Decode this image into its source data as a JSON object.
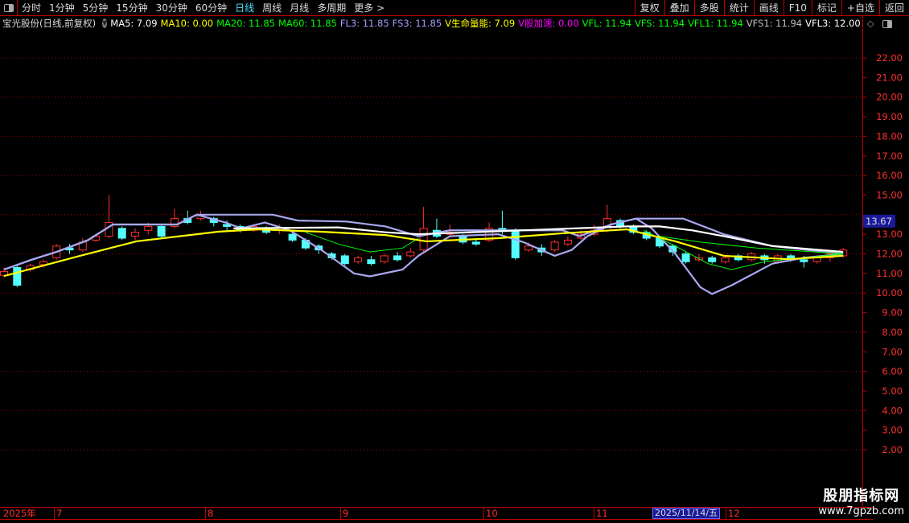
{
  "toolbar": {
    "periods": [
      "分时",
      "1分钟",
      "5分钟",
      "15分钟",
      "30分钟",
      "60分钟",
      "日线",
      "周线",
      "月线",
      "多周期",
      "更多 >"
    ],
    "active_period": "日线",
    "right_buttons": [
      "复权",
      "叠加",
      "多股",
      "统计",
      "画线",
      "F10",
      "标记",
      "+自选",
      "返回"
    ]
  },
  "legend": {
    "title": "宝光股份(日线,前复权)",
    "items": [
      {
        "label": "MA5: 7.09",
        "color": "#ffffff"
      },
      {
        "label": "MA10: 0.00",
        "color": "#ffff00"
      },
      {
        "label": "MA20: 11.85",
        "color": "#00ff00"
      },
      {
        "label": "MA60: 11.85",
        "color": "#00ff00"
      },
      {
        "label": "FL3: 11.85",
        "color": "#a0a0ff"
      },
      {
        "label": "FS3: 11.85",
        "color": "#a0a0ff"
      },
      {
        "label": "V生命量能: 7.09",
        "color": "#ffff00"
      },
      {
        "label": "V股加速: 0.00",
        "color": "#ff00ff"
      },
      {
        "label": "VFL: 11.94",
        "color": "#00ff00"
      },
      {
        "label": "VFS: 11.94",
        "color": "#00ff00"
      },
      {
        "label": "VFL1: 11.94",
        "color": "#00ff00"
      },
      {
        "label": "VFS1: 11.94",
        "color": "#c0c0c0"
      },
      {
        "label": "VFL3: 12.00",
        "color": "#ffffff"
      }
    ]
  },
  "dates": {
    "year": "2025年",
    "months": [
      "7",
      "8",
      "9",
      "10",
      "11",
      "12"
    ],
    "cursor": "2025/11/14/五"
  },
  "watermark": {
    "line1": "股朋指标网",
    "line2": "www.7gpzb.com"
  },
  "chart_data": {
    "type": "candlestick",
    "ylim": [
      1.5,
      23
    ],
    "yticks": [
      "22.00",
      "21.00",
      "20.00",
      "19.00",
      "18.00",
      "17.00",
      "16.00",
      "15.00",
      "13.00",
      "12.00",
      "11.00",
      "10.00",
      "9.00",
      "8.00",
      "7.00",
      "6.00",
      "5.00",
      "4.00",
      "3.00",
      "2.00"
    ],
    "ytick_values": [
      22,
      21,
      20,
      19,
      18,
      17,
      16,
      15,
      13,
      12,
      11,
      10,
      9,
      8,
      7,
      6,
      5,
      4,
      3,
      2
    ],
    "last_price": "13.67",
    "grid": "dotted red every 2.00",
    "up_color": "#ff3030",
    "down_color": "#54ffff",
    "candles_ochl": [
      [
        10.9,
        11.1,
        11.3,
        10.8
      ],
      [
        11.3,
        10.4,
        11.4,
        10.3
      ],
      [
        11.2,
        11.4,
        11.5,
        11.1
      ],
      [
        11.45,
        11.6,
        11.7,
        11.3
      ],
      [
        11.8,
        12.4,
        12.5,
        11.7
      ],
      [
        12.3,
        12.2,
        12.5,
        12.0
      ],
      [
        12.2,
        12.6,
        12.8,
        12.1
      ],
      [
        12.7,
        12.9,
        13.0,
        12.6
      ],
      [
        12.9,
        13.6,
        15.0,
        12.8
      ],
      [
        13.3,
        12.8,
        13.4,
        12.7
      ],
      [
        12.9,
        13.1,
        13.3,
        12.7
      ],
      [
        13.2,
        13.4,
        13.6,
        13.0
      ],
      [
        13.4,
        12.9,
        13.5,
        12.8
      ],
      [
        13.4,
        13.8,
        14.3,
        13.3
      ],
      [
        13.8,
        13.6,
        14.2,
        13.5
      ],
      [
        13.8,
        14.0,
        14.2,
        13.7
      ],
      [
        13.8,
        13.6,
        13.9,
        13.4
      ],
      [
        13.5,
        13.4,
        13.7,
        13.2
      ],
      [
        13.4,
        13.2,
        13.5,
        13.1
      ],
      [
        13.2,
        13.4,
        13.5,
        13.1
      ],
      [
        13.3,
        13.1,
        13.4,
        13.0
      ],
      [
        13.2,
        13.3,
        13.5,
        13.0
      ],
      [
        13.0,
        12.7,
        13.1,
        12.6
      ],
      [
        12.7,
        12.3,
        12.8,
        12.2
      ],
      [
        12.4,
        12.2,
        12.5,
        12.0
      ],
      [
        12.0,
        11.8,
        12.1,
        11.7
      ],
      [
        11.9,
        11.5,
        12.0,
        11.4
      ],
      [
        11.6,
        11.8,
        11.9,
        11.5
      ],
      [
        11.7,
        11.5,
        11.9,
        11.4
      ],
      [
        11.6,
        11.9,
        12.0,
        11.5
      ],
      [
        11.9,
        11.7,
        12.1,
        11.6
      ],
      [
        11.9,
        12.1,
        12.3,
        11.8
      ],
      [
        12.2,
        13.3,
        14.4,
        12.1
      ],
      [
        13.2,
        12.9,
        13.8,
        12.8
      ],
      [
        13.0,
        13.1,
        13.5,
        12.9
      ],
      [
        12.9,
        12.6,
        13.0,
        12.5
      ],
      [
        12.6,
        12.5,
        12.8,
        12.4
      ],
      [
        12.7,
        13.3,
        13.6,
        12.6
      ],
      [
        13.3,
        13.2,
        14.2,
        13.0
      ],
      [
        13.2,
        11.8,
        13.3,
        11.7
      ],
      [
        12.2,
        12.4,
        12.6,
        12.1
      ],
      [
        12.3,
        12.1,
        12.5,
        11.9
      ],
      [
        12.2,
        12.6,
        12.7,
        12.1
      ],
      [
        12.5,
        12.7,
        12.9,
        12.4
      ],
      [
        12.8,
        13.0,
        13.2,
        12.7
      ],
      [
        13.0,
        13.2,
        13.5,
        12.9
      ],
      [
        13.2,
        13.8,
        14.5,
        13.1
      ],
      [
        13.7,
        13.4,
        13.8,
        13.3
      ],
      [
        13.4,
        13.1,
        13.5,
        13.0
      ],
      [
        13.1,
        12.8,
        13.2,
        12.7
      ],
      [
        12.8,
        12.4,
        12.9,
        12.3
      ],
      [
        12.4,
        12.1,
        12.5,
        11.9
      ],
      [
        12.0,
        11.6,
        12.1,
        11.5
      ],
      [
        11.7,
        11.8,
        12.0,
        11.6
      ],
      [
        11.8,
        11.6,
        11.9,
        11.5
      ],
      [
        11.6,
        11.8,
        11.9,
        11.5
      ],
      [
        11.9,
        11.7,
        12.0,
        11.6
      ],
      [
        11.7,
        12.0,
        12.1,
        11.6
      ],
      [
        11.9,
        11.7,
        12.0,
        11.5
      ],
      [
        11.6,
        11.9,
        12.0,
        11.5
      ],
      [
        11.9,
        11.8,
        12.0,
        11.6
      ],
      [
        11.7,
        11.6,
        11.9,
        11.3
      ],
      [
        11.6,
        11.8,
        11.9,
        11.5
      ],
      [
        11.8,
        12.0,
        12.1,
        11.6
      ],
      [
        11.9,
        12.2,
        12.3,
        11.8
      ]
    ],
    "lines": [
      {
        "color": "#a8a8f0",
        "points": [
          [
            0,
            11.2
          ],
          [
            2.1,
            11.7
          ],
          [
            4,
            12.1
          ],
          [
            6.4,
            12.7
          ],
          [
            8.3,
            13.5
          ],
          [
            13.2,
            13.5
          ],
          [
            14.7,
            14.0
          ],
          [
            20.5,
            14.0
          ],
          [
            22.4,
            13.7
          ],
          [
            26.1,
            13.65
          ],
          [
            29.1,
            13.4
          ],
          [
            31.6,
            12.9
          ],
          [
            34,
            13.2
          ],
          [
            42.6,
            13.2
          ],
          [
            43.9,
            12.9
          ],
          [
            46.3,
            13.5
          ],
          [
            48.2,
            13.8
          ],
          [
            51.8,
            13.8
          ],
          [
            54.9,
            13.0
          ],
          [
            58.6,
            12.4
          ],
          [
            64,
            12.0
          ]
        ]
      },
      {
        "color": "#a8a8f0",
        "points": [
          [
            0,
            11.2
          ],
          [
            2.1,
            11.7
          ],
          [
            4,
            12.1
          ],
          [
            6.4,
            12.7
          ],
          [
            8.3,
            13.5
          ],
          [
            13.2,
            13.5
          ],
          [
            14.7,
            14.0
          ],
          [
            16.9,
            13.6
          ],
          [
            18.1,
            13.3
          ],
          [
            19.9,
            13.6
          ],
          [
            21.8,
            13.2
          ],
          [
            24.2,
            12.2
          ],
          [
            26.7,
            11.0
          ],
          [
            27.9,
            10.85
          ],
          [
            30.4,
            11.2
          ],
          [
            31.6,
            11.9
          ],
          [
            34,
            12.9
          ],
          [
            37.7,
            13.0
          ],
          [
            39.6,
            12.6
          ],
          [
            42,
            11.9
          ],
          [
            43.3,
            12.2
          ],
          [
            44.5,
            12.9
          ],
          [
            46.3,
            13.5
          ],
          [
            48.2,
            13.8
          ],
          [
            49.4,
            13.3
          ],
          [
            51.2,
            12.0
          ],
          [
            53.1,
            10.3
          ],
          [
            54,
            9.95
          ],
          [
            55.5,
            10.4
          ],
          [
            58.6,
            11.5
          ],
          [
            61,
            11.8
          ],
          [
            64,
            12.0
          ]
        ]
      },
      {
        "color": "#ffffff",
        "points": [
          [
            17.5,
            13.3
          ],
          [
            25.5,
            13.35
          ],
          [
            29.1,
            13.1
          ],
          [
            31.6,
            13.0
          ],
          [
            47.5,
            13.4
          ],
          [
            50,
            13.4
          ],
          [
            52.5,
            13.2
          ],
          [
            54.9,
            12.9
          ],
          [
            58.6,
            12.4
          ],
          [
            64,
            12.1
          ]
        ]
      },
      {
        "color": "#00ff00",
        "points": [
          [
            23,
            13.1
          ],
          [
            25.5,
            12.5
          ],
          [
            27.9,
            12.1
          ],
          [
            30.4,
            12.3
          ],
          [
            31.6,
            12.8
          ]
        ]
      },
      {
        "color": "#00ff00",
        "points": [
          [
            48.8,
            13.2
          ],
          [
            51.2,
            12.4
          ],
          [
            53.7,
            11.5
          ],
          [
            55.5,
            11.2
          ],
          [
            58,
            11.6
          ],
          [
            61,
            11.8
          ],
          [
            64,
            12.0
          ]
        ]
      },
      {
        "color": "#00ff00",
        "points": [
          [
            50,
            12.9
          ],
          [
            53.1,
            12.6
          ],
          [
            57.4,
            12.3
          ],
          [
            64,
            12.0
          ]
        ]
      },
      {
        "color": "#ffff00",
        "points": [
          [
            0,
            10.87
          ],
          [
            5.8,
            11.9
          ],
          [
            10.1,
            12.64
          ],
          [
            16.3,
            13.13
          ],
          [
            19.3,
            13.25
          ],
          [
            24.2,
            13.13
          ],
          [
            29.1,
            12.96
          ],
          [
            32.2,
            12.64
          ],
          [
            37.7,
            12.8
          ],
          [
            42.6,
            13.05
          ],
          [
            47.5,
            13.25
          ],
          [
            51.2,
            12.64
          ],
          [
            54.9,
            11.9
          ],
          [
            59.8,
            11.73
          ],
          [
            64,
            11.9
          ]
        ]
      }
    ]
  }
}
